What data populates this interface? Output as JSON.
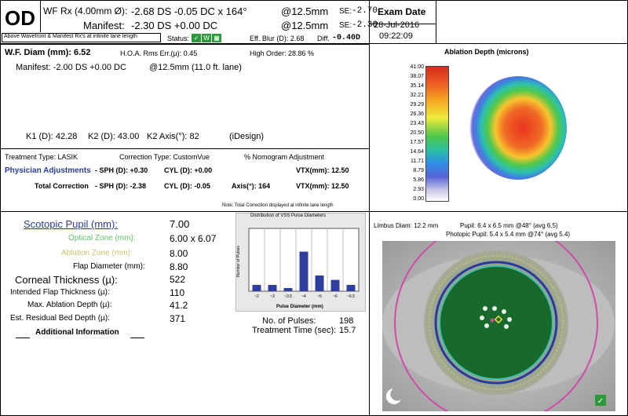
{
  "header": {
    "eye": "OD",
    "wf_rx_label": "WF Rx (4.00mm Ø):",
    "wf_rx_value": "-2.68 DS   -0.05 DC x 164°",
    "wf_rx_vertex": "@12.5mm",
    "se1_label": "SE:",
    "se1_value": "-2.70",
    "manifest_label": "Manifest:",
    "manifest_value": "-2.30 DS  +0.00 DC",
    "manifest_vertex": "@12.5mm",
    "se2_label": "SE:",
    "se2_value": "-2.30",
    "note_left": "Above Wavefront & Manifest Rx's at infinite lane length",
    "status_label": "Status:",
    "eff_blur": "Eff. Blur (D): 2.68",
    "diff_label": "Diff.",
    "diff_value": "-0.40D",
    "exam_date_label": "Exam Date",
    "exam_date": "28-Jul-2016",
    "exam_time": "09:22:09"
  },
  "wf": {
    "diam": "W.F. Diam (mm): 6.52",
    "hoa": "H.O.A. Rms Err.(µ):  0.45",
    "high_order": "High Order: 28.86 %",
    "manifest_line": "Manifest: -2.00 DS +0.00 DC",
    "manifest_at": "@12.5mm (11.0 ft. lane)",
    "k1": "K1 (D): 42.28",
    "k2": "K2 (D): 43.00",
    "k2axis": "K2 Axis(°): 82",
    "idesign": "(iDesign)"
  },
  "treatment": {
    "type": "Treatment Type: LASIK",
    "correction": "Correction Type: CustomVue",
    "nomogram": "% Nomogram Adjustment",
    "phys_label": "Physician Adjustments",
    "phys_sph": "- SPH (D): +0.30",
    "phys_cyl": "CYL (D): +0.00",
    "phys_vtx": "VTX(mm): 12.50",
    "total_label": "Total Correction",
    "total_sph": "- SPH (D): -2.38",
    "total_cyl": "CYL (D): -0.05",
    "total_axis": "Axis(°): 164",
    "total_vtx": "VTX(mm): 12.50",
    "note": "Note: Total Correction displayed at infinite lane length"
  },
  "ablation": {
    "title": "Ablation Depth (microns)",
    "scale": [
      "41.00",
      "38.07",
      "35.14",
      "32.21",
      "29.29",
      "26.36",
      "23.43",
      "20.50",
      "17.57",
      "14.64",
      "11.71",
      "8.79",
      "5.86",
      "2.93",
      "0.00"
    ]
  },
  "params": [
    {
      "label": "Scotopic Pupil (mm):",
      "value": "7.00"
    },
    {
      "label": "Optical Zone (mm):",
      "value": "6.00 x 6.07"
    },
    {
      "label": "Ablation Zone (mm):",
      "value": "8.00"
    },
    {
      "label": "Flap Diameter (mm):",
      "value": "8.80"
    },
    {
      "label": "Corneal Thickness (µ):",
      "value": "522"
    },
    {
      "label": "Intended Flap Thickness (µ):",
      "value": "110"
    },
    {
      "label": "Max. Ablation Depth (µ):",
      "value": "41.2"
    },
    {
      "label": "Est. Residual Bed Depth (µ):",
      "value": "371"
    }
  ],
  "additional_info": "Additional Information",
  "pulses": {
    "title": "Distribution of VSS Pulse Diameters",
    "xlabel": "Pulse Diameter (mm)",
    "ylabel": "Number of Pulses",
    "pulses_label": "No. of Pulses:",
    "pulses_value": "198",
    "time_label": "Treatment Time (sec):",
    "time_value": "15.7"
  },
  "chart_data": {
    "type": "bar",
    "title": "Distribution of VSS Pulse Diameters",
    "xlabel": "Pulse Diameter (mm)",
    "ylabel": "Number of Pulses",
    "categories": [
      "~2",
      "~3",
      "~3.5",
      "~4",
      "~5",
      "~6",
      "~6.5"
    ],
    "values": [
      10,
      10,
      5,
      63,
      25,
      18,
      10
    ],
    "ylim": [
      0,
      100
    ],
    "grid": true
  },
  "eye_image": {
    "limbus": "Limbus Diam: 12.2 mm",
    "pupil": "Pupil: 6.4 x 6.5 mm @48° (avg 6.5)",
    "photopic": "Photopic Pupil: 5.4 x 5.4 mm @74° (avg 5.4)"
  }
}
